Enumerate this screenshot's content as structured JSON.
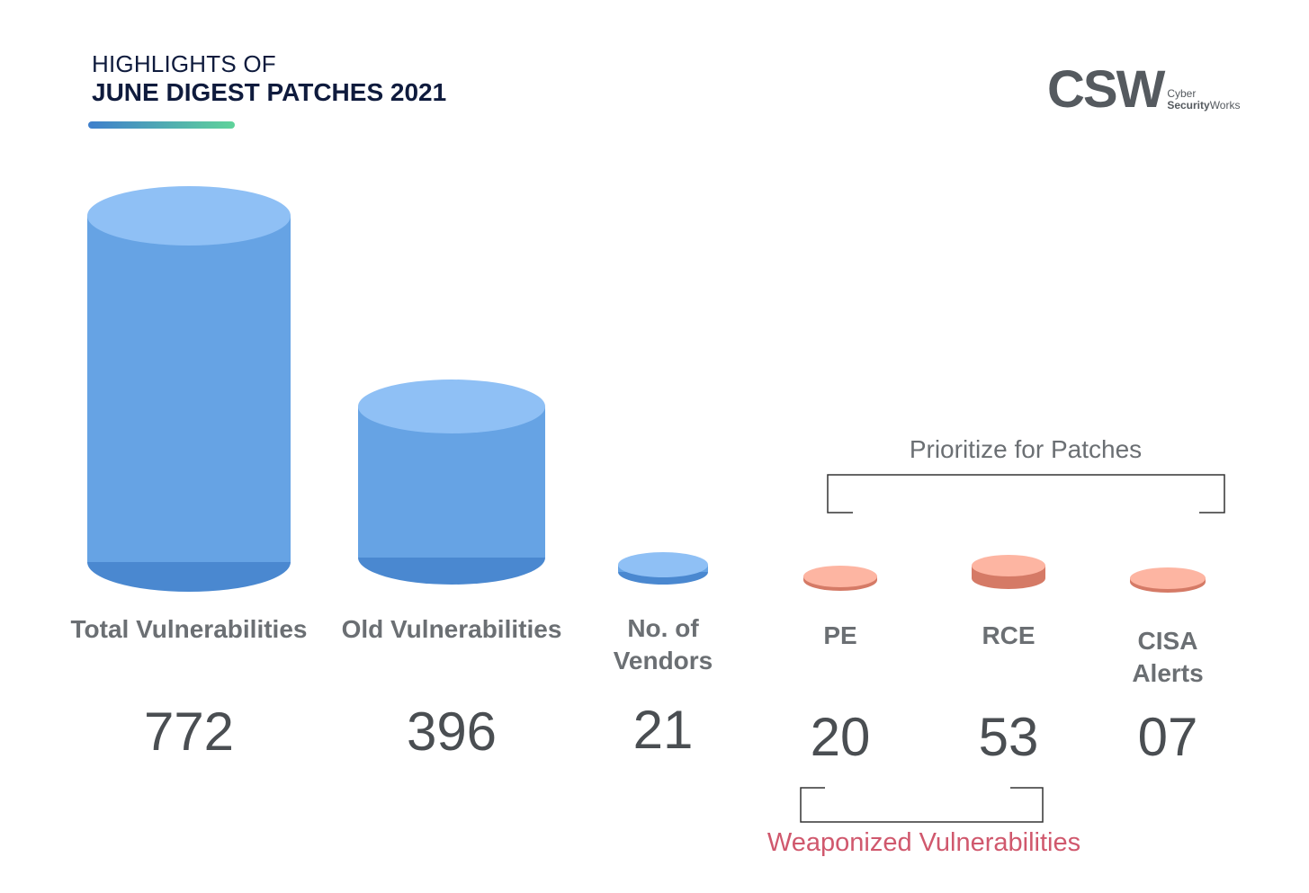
{
  "header": {
    "line1": "HIGHLIGHTS OF",
    "line2": "JUNE DIGEST PATCHES 2021"
  },
  "logo": {
    "mark": "CSW",
    "sub_line1": "Cyber",
    "sub_line2_bold": "Security",
    "sub_line2_rest": "Works"
  },
  "colors": {
    "blue_body": "#66a3e4",
    "blue_top": "#8fc0f5",
    "blue_base": "#4a88d0",
    "salmon_top": "#fdb5a2",
    "salmon_side": "#d57a66"
  },
  "chart_data": {
    "type": "bar",
    "categories": [
      "Total Vulnerabilities",
      "Old Vulnerabilities",
      "No. of Vendors",
      "PE",
      "RCE",
      "CISA Alerts"
    ],
    "values": [
      772,
      396,
      21,
      20,
      53,
      7
    ],
    "value_labels": [
      "772",
      "396",
      "21",
      "20",
      "53",
      "07"
    ],
    "bar_style": "cylinder",
    "group_colors": [
      "blue",
      "blue",
      "blue",
      "salmon",
      "salmon",
      "salmon"
    ],
    "brackets": [
      {
        "label": "Prioritize for Patches",
        "covers": [
          "PE",
          "RCE",
          "CISA Alerts"
        ],
        "placement": "above"
      },
      {
        "label": "Weaponized Vulnerabilities",
        "covers": [
          "PE",
          "RCE"
        ],
        "placement": "below"
      }
    ]
  }
}
